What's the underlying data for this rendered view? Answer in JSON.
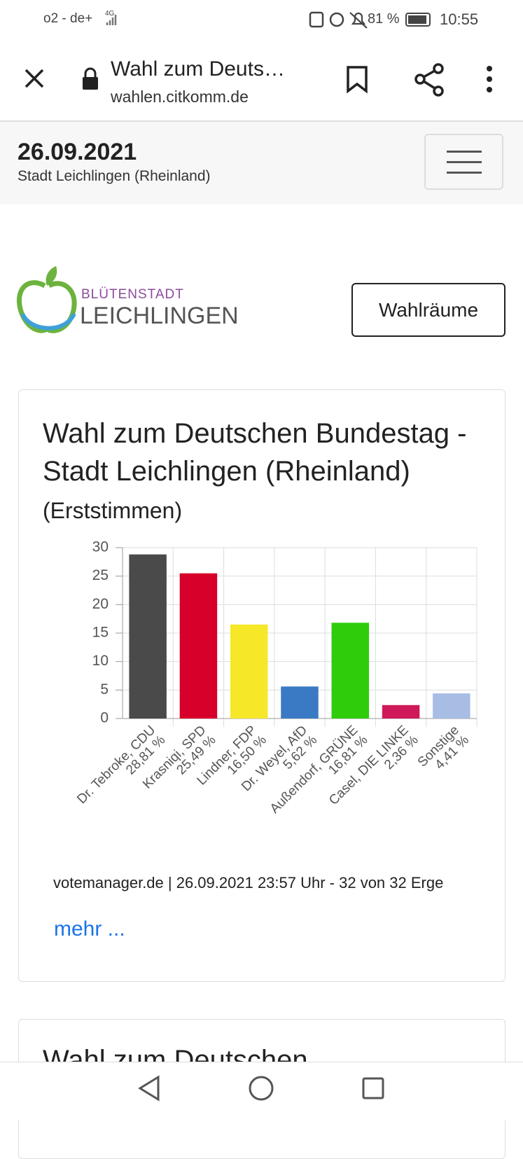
{
  "status_bar": {
    "carrier": "o2 - de+",
    "network": "4G",
    "battery": "81 %",
    "time": "10:55"
  },
  "browser": {
    "title": "Wahl zum Deuts…",
    "url": "wahlen.citkomm.de"
  },
  "header": {
    "date": "26.09.2021",
    "place": "Stadt Leichlingen (Rheinland)"
  },
  "logo": {
    "top": "BLÜTENSTADT",
    "bottom": "LEICHLINGEN"
  },
  "button": "Wahlräume",
  "card": {
    "footer": "votemanager.de | 26.09.2021 23:57 Uhr - 32 von 32 Erge",
    "link": "mehr ..."
  },
  "next_card": {
    "title": "Wahl zum Deutschen"
  },
  "chart_data": {
    "type": "bar",
    "title": "Wahl zum Deutschen Bundestag - Stadt Leichlingen (Rheinland)",
    "subtitle": "(Erststimmen)",
    "categories": [
      "Dr. Tebroke, CDU",
      "Krasniqi, SPD",
      "Lindner, FDP",
      "Dr. Weyel, AfD",
      "Außendorf, GRÜNE",
      "Casel, DIE LINKE",
      "Sonstige"
    ],
    "values": [
      28.81,
      25.49,
      16.5,
      5.62,
      16.81,
      2.36,
      4.41
    ],
    "value_labels": [
      "28,81 %",
      "25,49 %",
      "16,50 %",
      "5,62 %",
      "16,81 %",
      "2,36 %",
      "4,41 %"
    ],
    "colors": [
      "#4a4a4a",
      "#d7002a",
      "#f6e729",
      "#3a7ac4",
      "#2ecc0a",
      "#d0195a",
      "#a8bde4"
    ],
    "ylim": [
      0,
      30
    ],
    "yticks": [
      0,
      5,
      10,
      15,
      20,
      25,
      30
    ],
    "grid": true
  }
}
